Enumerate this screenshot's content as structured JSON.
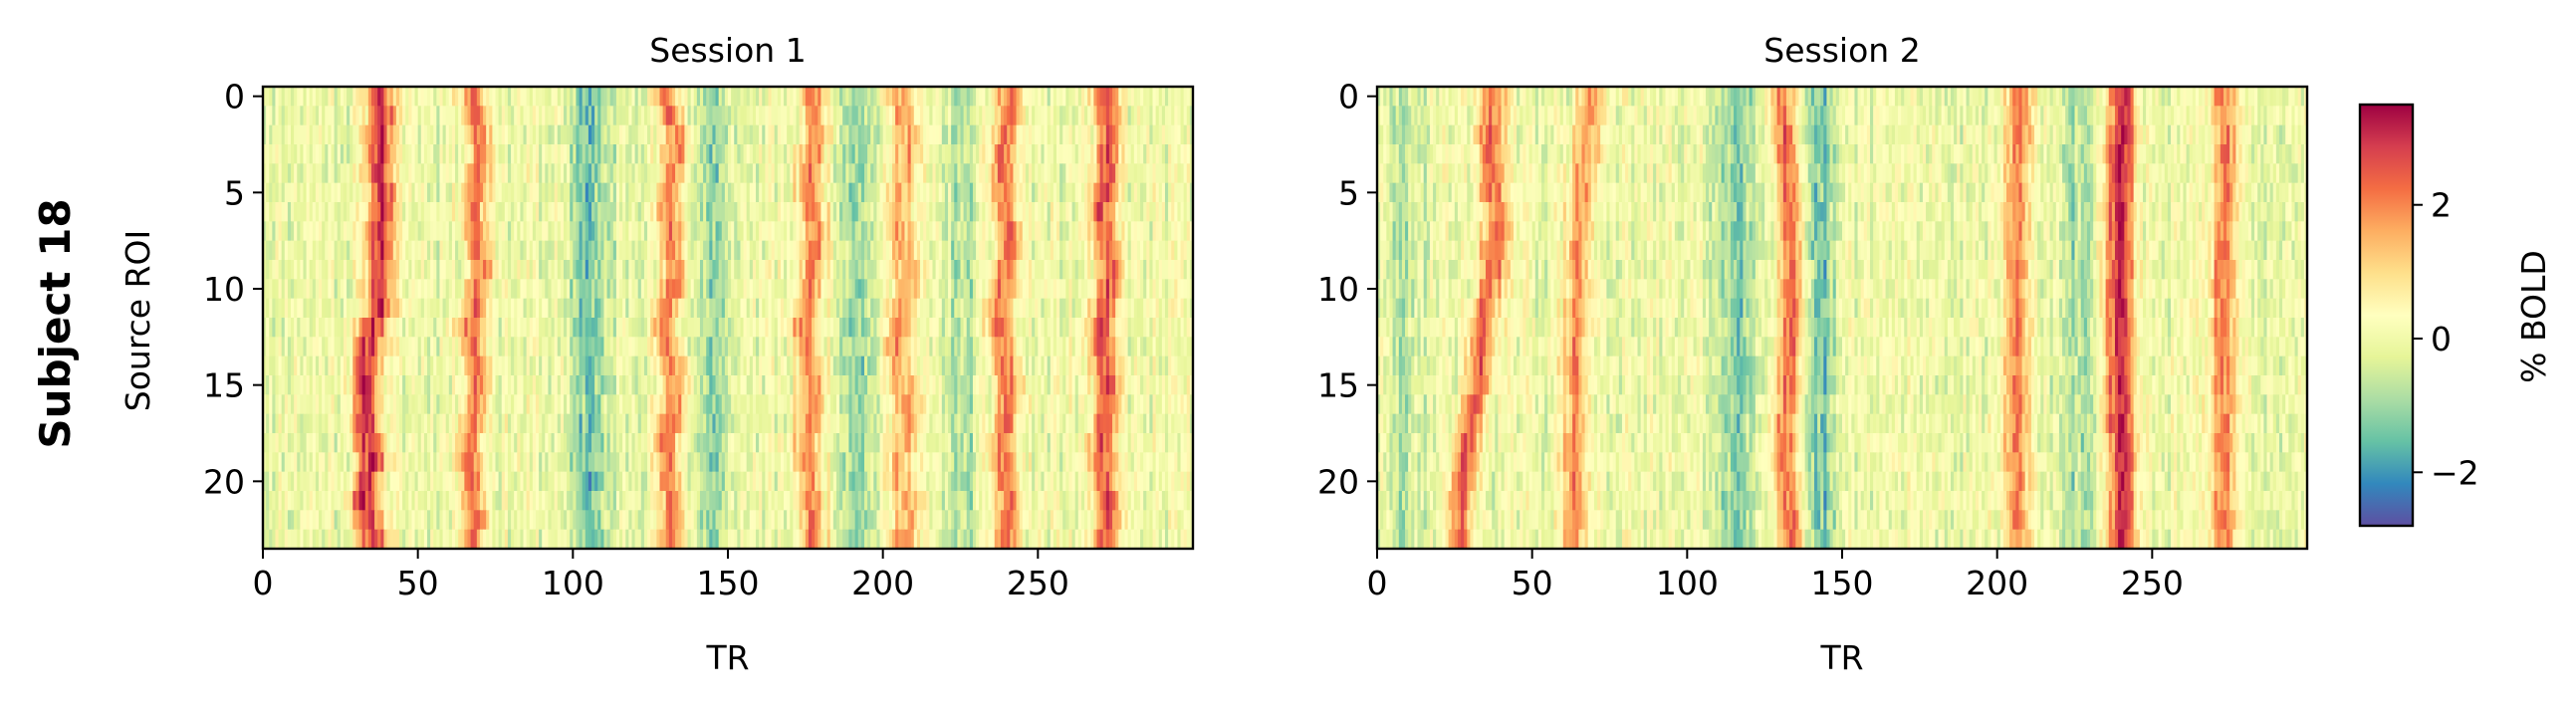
{
  "figure": {
    "row_label": "Subject 18",
    "ylabel": "Source ROI",
    "colorbar_label": "% BOLD"
  },
  "chart_data": [
    {
      "type": "heatmap",
      "title": "Session 1",
      "xlabel": "TR",
      "ylabel": "Source ROI",
      "x_range": [
        0,
        299
      ],
      "y_range": [
        0,
        23
      ],
      "xticks": [
        0,
        50,
        100,
        150,
        200,
        250
      ],
      "yticks": [
        0,
        5,
        10,
        15,
        20
      ],
      "n_rows": 24,
      "n_cols": 300,
      "peak_tracks": [
        {
          "value": 3.0,
          "width": 3.2,
          "x_by_row": [
            37,
            38,
            37,
            37,
            37,
            38,
            38,
            37,
            37,
            37,
            37,
            37,
            35,
            34,
            33,
            33,
            33,
            33,
            34,
            35,
            33,
            32,
            34,
            35
          ]
        },
        {
          "value": 2.2,
          "width": 3.0,
          "x_by_row": [
            67,
            68,
            69,
            70,
            69,
            68,
            67,
            68,
            69,
            70,
            69,
            68,
            66,
            67,
            68,
            69,
            68,
            67,
            66,
            66,
            67,
            67,
            68,
            67
          ]
        },
        {
          "value": 2.0,
          "width": 3.0,
          "x_by_row": [
            130,
            131,
            133,
            133,
            132,
            131,
            130,
            131,
            132,
            133,
            132,
            130,
            129,
            130,
            132,
            133,
            132,
            131,
            130,
            130,
            131,
            132,
            132,
            131
          ]
        },
        {
          "value": 2.0,
          "width": 3.0,
          "x_by_row": [
            177,
            178,
            178,
            177,
            176,
            176,
            177,
            178,
            178,
            177,
            176,
            175,
            174,
            175,
            176,
            177,
            177,
            176,
            175,
            175,
            176,
            176,
            177,
            177
          ]
        },
        {
          "value": 1.8,
          "width": 3.0,
          "x_by_row": [
            205,
            206,
            207,
            207,
            206,
            205,
            204,
            205,
            206,
            207,
            207,
            206,
            205,
            204,
            205,
            206,
            207,
            207,
            206,
            205,
            206,
            207,
            207,
            206
          ]
        },
        {
          "value": 2.2,
          "width": 3.0,
          "x_by_row": [
            240,
            240,
            239,
            238,
            238,
            238,
            239,
            240,
            240,
            239,
            238,
            237,
            237,
            238,
            239,
            240,
            240,
            239,
            238,
            238,
            239,
            240,
            240,
            239
          ]
        },
        {
          "value": 2.4,
          "width": 3.0,
          "x_by_row": [
            271,
            272,
            273,
            272,
            272,
            271,
            270,
            271,
            272,
            273,
            272,
            271,
            270,
            270,
            271,
            272,
            272,
            271,
            270,
            270,
            271,
            272,
            272,
            271
          ]
        }
      ],
      "trough_bands": [
        {
          "value": -1.7,
          "center": 105,
          "width": 5
        },
        {
          "value": -1.4,
          "center": 145,
          "width": 4
        },
        {
          "value": -1.2,
          "center": 192,
          "width": 4
        },
        {
          "value": -1.0,
          "center": 225,
          "width": 4
        }
      ],
      "noise_seed": 11
    },
    {
      "type": "heatmap",
      "title": "Session 2",
      "xlabel": "TR",
      "ylabel": "",
      "x_range": [
        0,
        299
      ],
      "y_range": [
        0,
        23
      ],
      "xticks": [
        0,
        50,
        100,
        150,
        200,
        250
      ],
      "yticks": [
        0,
        5,
        10,
        15,
        20
      ],
      "n_rows": 24,
      "n_cols": 300,
      "peak_tracks": [
        {
          "value": 2.4,
          "width": 3.0,
          "x_by_row": [
            37,
            37,
            36,
            36,
            37,
            37,
            38,
            38,
            37,
            37,
            36,
            35,
            34,
            33,
            33,
            32,
            31,
            30,
            29,
            28,
            27,
            26,
            26,
            26
          ]
        },
        {
          "value": 1.8,
          "width": 3.0,
          "x_by_row": [
            68,
            68,
            67,
            67,
            66,
            66,
            65,
            65,
            64,
            64,
            64,
            64,
            63,
            63,
            63,
            63,
            63,
            63,
            63,
            63,
            63,
            63,
            63,
            63
          ]
        },
        {
          "value": 2.2,
          "width": 3.0,
          "x_by_row": [
            130,
            130,
            131,
            131,
            132,
            132,
            133,
            133,
            133,
            133,
            133,
            133,
            133,
            133,
            132,
            132,
            132,
            131,
            131,
            131,
            132,
            132,
            133,
            133
          ]
        },
        {
          "value": 2.0,
          "width": 3.0,
          "x_by_row": [
            207,
            207,
            207,
            206,
            206,
            206,
            206,
            206,
            206,
            206,
            206,
            206,
            206,
            206,
            206,
            206,
            206,
            206,
            206,
            206,
            206,
            206,
            206,
            206
          ]
        },
        {
          "value": 3.0,
          "width": 3.4,
          "x_by_row": [
            240,
            240,
            240,
            239,
            239,
            239,
            239,
            239,
            239,
            239,
            239,
            239,
            239,
            239,
            239,
            239,
            239,
            239,
            240,
            240,
            240,
            240,
            240,
            240
          ]
        },
        {
          "value": 2.0,
          "width": 3.0,
          "x_by_row": [
            272,
            272,
            273,
            273,
            273,
            273,
            272,
            272,
            272,
            272,
            272,
            272,
            272,
            272,
            272,
            272,
            272,
            272,
            272,
            272,
            272,
            272,
            272,
            272
          ]
        }
      ],
      "trough_bands": [
        {
          "value": -1.8,
          "center": 142,
          "width": 4
        },
        {
          "value": -1.3,
          "center": 115,
          "width": 5
        },
        {
          "value": -1.0,
          "center": 225,
          "width": 5
        },
        {
          "value": -1.0,
          "center": 8,
          "width": 4
        }
      ],
      "noise_seed": 29
    }
  ],
  "colorbar": {
    "colormap": "Spectral_r",
    "vmin": -2.8,
    "vmax": 3.5,
    "ticks": [
      -2,
      0,
      2
    ],
    "tick_labels": [
      "−2",
      "0",
      "2"
    ],
    "label": "% BOLD"
  },
  "colors": {
    "spectral_r": [
      "#5e4fa2",
      "#3288bd",
      "#66c2a5",
      "#abdda4",
      "#e6f598",
      "#ffffbf",
      "#fee08b",
      "#fdae61",
      "#f46d43",
      "#d53e4f",
      "#9e0142"
    ]
  }
}
